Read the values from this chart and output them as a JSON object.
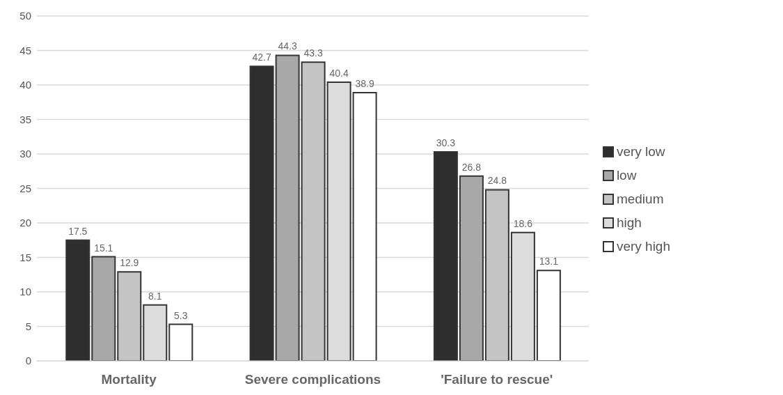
{
  "chart_data": {
    "type": "bar",
    "categories": [
      "Mortality",
      "Severe complications",
      "'Failure to rescue'"
    ],
    "series": [
      {
        "name": "very low",
        "color": "#2e2e2e",
        "values": [
          17.5,
          42.7,
          30.3
        ]
      },
      {
        "name": "low",
        "color": "#a8a8a8",
        "values": [
          15.1,
          44.3,
          26.8
        ]
      },
      {
        "name": "medium",
        "color": "#c4c4c4",
        "values": [
          12.9,
          43.3,
          24.8
        ]
      },
      {
        "name": "high",
        "color": "#dcdcdc",
        "values": [
          8.1,
          40.4,
          18.6
        ]
      },
      {
        "name": "very high",
        "color": "#ffffff",
        "values": [
          5.3,
          38.9,
          13.1
        ]
      }
    ],
    "ylim": [
      0,
      50
    ],
    "yticks": [
      0,
      5,
      10,
      15,
      20,
      25,
      30,
      35,
      40,
      45,
      50
    ],
    "grid": "y",
    "legend": "right",
    "data_labels": true
  }
}
